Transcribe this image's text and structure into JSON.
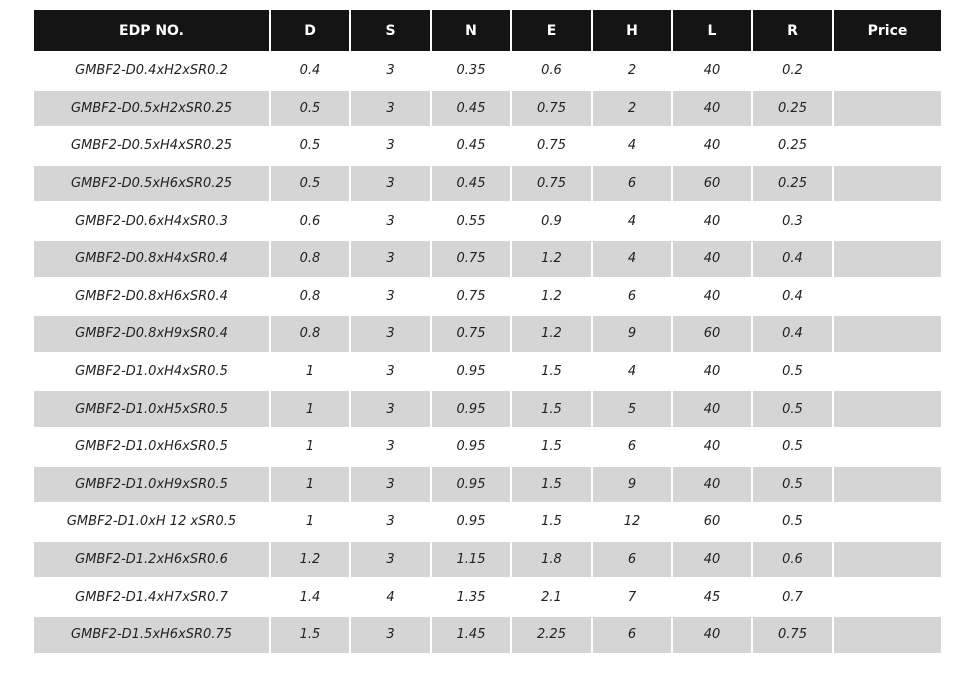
{
  "table": {
    "headers": [
      "EDP  NO.",
      "D",
      "S",
      "N",
      "E",
      "H",
      "L",
      "R",
      "Price"
    ],
    "rows": [
      [
        "GMBF2-D0.4xH2xSR0.2",
        "0.4",
        "3",
        "0.35",
        "0.6",
        "2",
        "40",
        "0.2",
        ""
      ],
      [
        "GMBF2-D0.5xH2xSR0.25",
        "0.5",
        "3",
        "0.45",
        "0.75",
        "2",
        "40",
        "0.25",
        ""
      ],
      [
        "GMBF2-D0.5xH4xSR0.25",
        "0.5",
        "3",
        "0.45",
        "0.75",
        "4",
        "40",
        "0.25",
        ""
      ],
      [
        "GMBF2-D0.5xH6xSR0.25",
        "0.5",
        "3",
        "0.45",
        "0.75",
        "6",
        "60",
        "0.25",
        ""
      ],
      [
        "GMBF2-D0.6xH4xSR0.3",
        "0.6",
        "3",
        "0.55",
        "0.9",
        "4",
        "40",
        "0.3",
        ""
      ],
      [
        "GMBF2-D0.8xH4xSR0.4",
        "0.8",
        "3",
        "0.75",
        "1.2",
        "4",
        "40",
        "0.4",
        ""
      ],
      [
        "GMBF2-D0.8xH6xSR0.4",
        "0.8",
        "3",
        "0.75",
        "1.2",
        "6",
        "40",
        "0.4",
        ""
      ],
      [
        "GMBF2-D0.8xH9xSR0.4",
        "0.8",
        "3",
        "0.75",
        "1.2",
        "9",
        "60",
        "0.4",
        ""
      ],
      [
        "GMBF2-D1.0xH4xSR0.5",
        "1",
        "3",
        "0.95",
        "1.5",
        "4",
        "40",
        "0.5",
        ""
      ],
      [
        "GMBF2-D1.0xH5xSR0.5",
        "1",
        "3",
        "0.95",
        "1.5",
        "5",
        "40",
        "0.5",
        ""
      ],
      [
        "GMBF2-D1.0xH6xSR0.5",
        "1",
        "3",
        "0.95",
        "1.5",
        "6",
        "40",
        "0.5",
        ""
      ],
      [
        "GMBF2-D1.0xH9xSR0.5",
        "1",
        "3",
        "0.95",
        "1.5",
        "9",
        "40",
        "0.5",
        ""
      ],
      [
        "GMBF2-D1.0xH 12 xSR0.5",
        "1",
        "3",
        "0.95",
        "1.5",
        "12",
        "60",
        "0.5",
        ""
      ],
      [
        "GMBF2-D1.2xH6xSR0.6",
        "1.2",
        "3",
        "1.15",
        "1.8",
        "6",
        "40",
        "0.6",
        ""
      ],
      [
        "GMBF2-D1.4xH7xSR0.7",
        "1.4",
        "4",
        "1.35",
        "2.1",
        "7",
        "45",
        "0.7",
        ""
      ],
      [
        "GMBF2-D1.5xH6xSR0.75",
        "1.5",
        "3",
        "1.45",
        "2.25",
        "6",
        "40",
        "0.75",
        ""
      ]
    ]
  },
  "colors": {
    "header_bg": "#141414",
    "alt_row_bg": "#d5d5d5"
  }
}
